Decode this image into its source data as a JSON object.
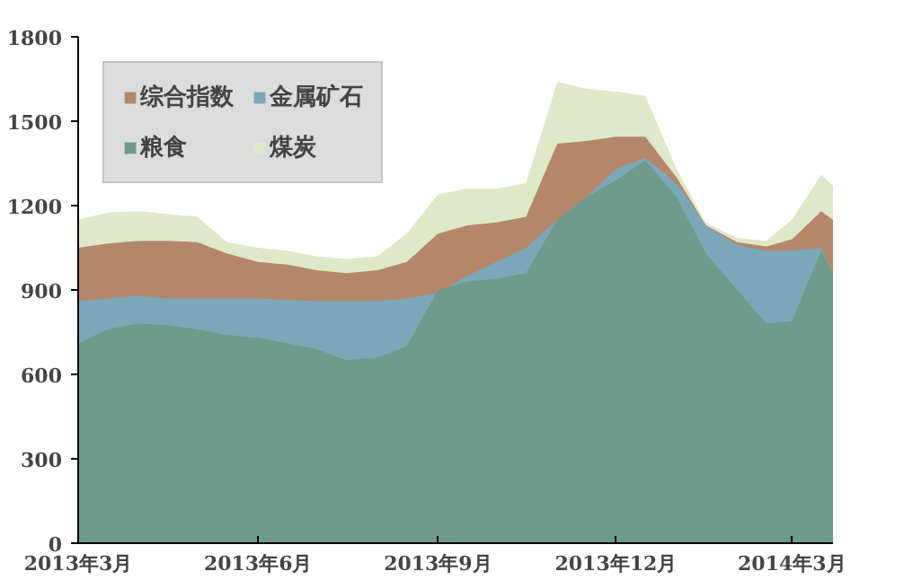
{
  "chart_data": {
    "type": "area",
    "x": [
      "2013-03-01",
      "2013-03-16",
      "2013-04-01",
      "2013-04-16",
      "2013-05-01",
      "2013-05-16",
      "2013-06-01",
      "2013-06-16",
      "2013-07-01",
      "2013-07-16",
      "2013-08-01",
      "2013-08-16",
      "2013-09-01",
      "2013-09-16",
      "2013-10-01",
      "2013-10-16",
      "2013-11-01",
      "2013-11-16",
      "2013-12-01",
      "2013-12-16",
      "2014-01-01",
      "2014-01-16",
      "2014-02-01",
      "2014-02-16",
      "2014-03-01",
      "2014-03-16",
      "2014-03-22"
    ],
    "xlim": [
      "2013-03-01",
      "2014-03-22"
    ],
    "xticks": [
      {
        "value": "2013-03-01",
        "label": "2013年3月"
      },
      {
        "value": "2013-06-01",
        "label": "2013年6月"
      },
      {
        "value": "2013-09-01",
        "label": "2013年9月"
      },
      {
        "value": "2013-12-01",
        "label": "2013年12月"
      },
      {
        "value": "2014-03-01",
        "label": "2014年3月"
      }
    ],
    "ylim": [
      0,
      1800
    ],
    "yticks": [
      0,
      300,
      600,
      900,
      1200,
      1500,
      1800
    ],
    "grid": false,
    "legend": "top left",
    "series": [
      {
        "name": "煤炭",
        "color": "#dfe8c8",
        "values": [
          1150,
          1175,
          1180,
          1170,
          1160,
          1070,
          1050,
          1040,
          1020,
          1010,
          1020,
          1100,
          1240,
          1260,
          1260,
          1280,
          1640,
          1615,
          1605,
          1590,
          1330,
          1140,
          1085,
          1075,
          1150,
          1310,
          1270
        ]
      },
      {
        "name": "综合指数",
        "color": "#b5876a",
        "values": [
          1050,
          1065,
          1075,
          1075,
          1070,
          1030,
          1000,
          990,
          970,
          960,
          970,
          1000,
          1100,
          1130,
          1140,
          1160,
          1420,
          1430,
          1445,
          1445,
          1300,
          1130,
          1070,
          1055,
          1080,
          1180,
          1150
        ]
      },
      {
        "name": "金属矿石",
        "color": "#7ba7b8",
        "values": [
          860,
          870,
          880,
          870,
          870,
          870,
          870,
          865,
          860,
          860,
          860,
          870,
          890,
          950,
          1000,
          1050,
          1150,
          1230,
          1330,
          1370,
          1280,
          1130,
          1060,
          1040,
          1040,
          1050,
          960
        ]
      },
      {
        "name": "粮食",
        "color": "#6e9a8c",
        "values": [
          710,
          760,
          780,
          775,
          760,
          740,
          730,
          710,
          690,
          650,
          660,
          700,
          900,
          930,
          940,
          960,
          1150,
          1230,
          1290,
          1360,
          1230,
          1030,
          900,
          780,
          790,
          1040,
          960
        ]
      }
    ]
  }
}
